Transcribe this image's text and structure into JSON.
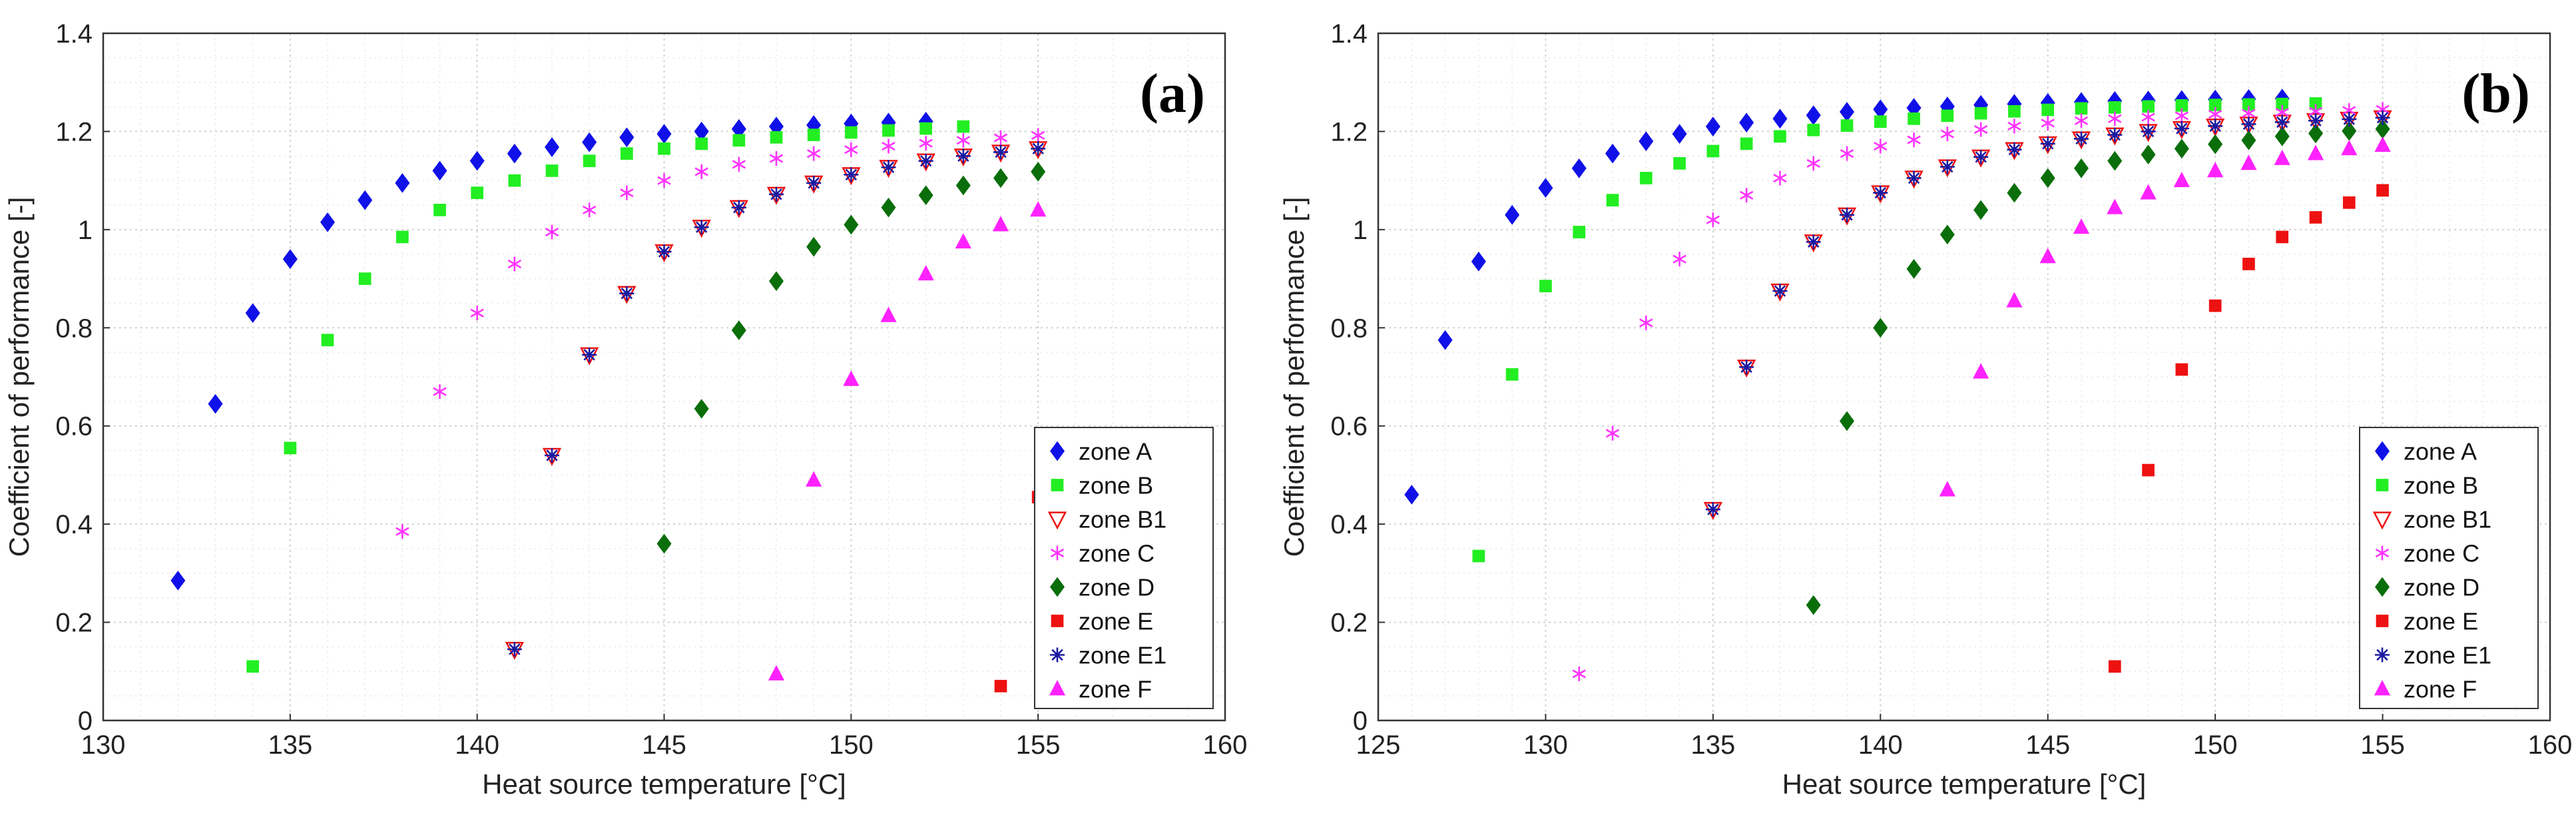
{
  "colors": {
    "zone_A": "#1010e8",
    "zone_B": "#22ee22",
    "zone_B1": "#ee1111",
    "zone_C": "#ff33ff",
    "zone_D": "#0a6e0a",
    "zone_E": "#ee1111",
    "zone_E1": "#1a1aa0",
    "zone_F": "#ff22ff",
    "grid": "#d2d2d2",
    "axis": "#333333"
  },
  "chart_data": [
    {
      "type": "scatter",
      "panel_label": "(a)",
      "xlabel": "Heat source temperature [°C]",
      "ylabel": "Coefficient of performance [-]",
      "xlim": [
        130,
        160
      ],
      "ylim": [
        0,
        1.4
      ],
      "xticks": [
        130,
        135,
        140,
        145,
        150,
        155,
        160
      ],
      "yticks": [
        0,
        0.2,
        0.4,
        0.6,
        0.8,
        1,
        1.2,
        1.4
      ],
      "xtick_labels": [
        "130",
        "135",
        "140",
        "145",
        "150",
        "155",
        "160"
      ],
      "ytick_labels": [
        "0",
        "0.2",
        "0.4",
        "0.6",
        "0.8",
        "1",
        "1.2",
        "1.4"
      ],
      "grid": true,
      "legend_position": "bottom-right",
      "series": [
        {
          "name": "zone A",
          "marker": "diamond",
          "color": "#1010e8",
          "x": [
            132,
            133,
            134,
            135,
            136,
            137,
            138,
            139,
            140,
            141,
            142,
            143,
            144,
            145,
            146,
            147,
            148,
            149,
            150,
            151,
            152
          ],
          "y": [
            0.285,
            0.645,
            0.83,
            0.94,
            1.015,
            1.06,
            1.095,
            1.12,
            1.14,
            1.155,
            1.168,
            1.178,
            1.188,
            1.195,
            1.2,
            1.205,
            1.21,
            1.213,
            1.216,
            1.218,
            1.22
          ]
        },
        {
          "name": "zone B",
          "marker": "square",
          "color": "#22ee22",
          "x": [
            134,
            135,
            136,
            137,
            138,
            139,
            140,
            141,
            142,
            143,
            144,
            145,
            146,
            147,
            148,
            149,
            150,
            151,
            152,
            153
          ],
          "y": [
            0.11,
            0.555,
            0.775,
            0.9,
            0.985,
            1.04,
            1.075,
            1.1,
            1.12,
            1.14,
            1.155,
            1.165,
            1.175,
            1.182,
            1.188,
            1.193,
            1.198,
            1.202,
            1.206,
            1.21
          ]
        },
        {
          "name": "zone B1",
          "marker": "triangle-down-open",
          "color": "#ee1111",
          "x": [
            141,
            142,
            143,
            144,
            145,
            146,
            147,
            148,
            149,
            150,
            151,
            152,
            153,
            154,
            155
          ],
          "y": [
            0.145,
            0.54,
            0.745,
            0.87,
            0.955,
            1.005,
            1.045,
            1.072,
            1.095,
            1.112,
            1.127,
            1.14,
            1.15,
            1.158,
            1.165
          ]
        },
        {
          "name": "zone C",
          "marker": "asterisk",
          "color": "#ff33ff",
          "x": [
            138,
            139,
            140,
            141,
            142,
            143,
            144,
            145,
            146,
            147,
            148,
            149,
            150,
            151,
            152,
            153,
            154,
            155
          ],
          "y": [
            0.385,
            0.67,
            0.83,
            0.93,
            0.995,
            1.04,
            1.075,
            1.1,
            1.118,
            1.133,
            1.145,
            1.155,
            1.163,
            1.17,
            1.176,
            1.182,
            1.187,
            1.192
          ]
        },
        {
          "name": "zone D",
          "marker": "diamond",
          "color": "#0a6e0a",
          "x": [
            145,
            146,
            147,
            148,
            149,
            150,
            151,
            152,
            153,
            154,
            155
          ],
          "y": [
            0.36,
            0.635,
            0.795,
            0.895,
            0.965,
            1.01,
            1.045,
            1.07,
            1.09,
            1.105,
            1.118
          ]
        },
        {
          "name": "zone E",
          "marker": "square",
          "color": "#ee1111",
          "x": [
            154,
            155
          ],
          "y": [
            0.07,
            0.455
          ]
        },
        {
          "name": "zone E1",
          "marker": "star",
          "color": "#1a1aa0",
          "x": [
            141,
            142,
            143,
            144,
            145,
            146,
            147,
            148,
            149,
            150,
            151,
            152,
            153,
            154,
            155
          ],
          "y": [
            0.145,
            0.54,
            0.745,
            0.87,
            0.955,
            1.005,
            1.045,
            1.072,
            1.095,
            1.112,
            1.127,
            1.14,
            1.15,
            1.158,
            1.165
          ]
        },
        {
          "name": "zone F",
          "marker": "triangle-up",
          "color": "#ff22ff",
          "x": [
            148,
            149,
            150,
            151,
            152,
            153,
            154,
            155
          ],
          "y": [
            0.095,
            0.49,
            0.695,
            0.825,
            0.91,
            0.975,
            1.01,
            1.04
          ]
        }
      ]
    },
    {
      "type": "scatter",
      "panel_label": "(b)",
      "xlabel": "Heat source temperature [°C]",
      "ylabel": "Coefficient of performance [-]",
      "xlim": [
        125,
        160
      ],
      "ylim": [
        0,
        1.4
      ],
      "xticks": [
        125,
        130,
        135,
        140,
        145,
        150,
        155,
        160
      ],
      "yticks": [
        0,
        0.2,
        0.4,
        0.6,
        0.8,
        1,
        1.2,
        1.4
      ],
      "xtick_labels": [
        "125",
        "130",
        "135",
        "140",
        "145",
        "150",
        "155",
        "160"
      ],
      "ytick_labels": [
        "0",
        "0.2",
        "0.4",
        "0.6",
        "0.8",
        "1",
        "1.2",
        "1.4"
      ],
      "grid": true,
      "legend_position": "bottom-right",
      "series": [
        {
          "name": "zone A",
          "marker": "diamond",
          "color": "#1010e8",
          "x": [
            126,
            127,
            128,
            129,
            130,
            131,
            132,
            133,
            134,
            135,
            136,
            137,
            138,
            139,
            140,
            141,
            142,
            143,
            144,
            145,
            146,
            147,
            148,
            149,
            150,
            151,
            152
          ],
          "y": [
            0.46,
            0.775,
            0.935,
            1.03,
            1.085,
            1.125,
            1.155,
            1.18,
            1.195,
            1.21,
            1.218,
            1.226,
            1.233,
            1.24,
            1.245,
            1.248,
            1.251,
            1.254,
            1.256,
            1.258,
            1.26,
            1.262,
            1.263,
            1.264,
            1.265,
            1.266,
            1.267
          ]
        },
        {
          "name": "zone B",
          "marker": "square",
          "color": "#22ee22",
          "x": [
            128,
            129,
            130,
            131,
            132,
            133,
            134,
            135,
            136,
            137,
            138,
            139,
            140,
            141,
            142,
            143,
            144,
            145,
            146,
            147,
            148,
            149,
            150,
            151,
            152,
            153
          ],
          "y": [
            0.335,
            0.705,
            0.885,
            0.995,
            1.06,
            1.105,
            1.135,
            1.16,
            1.175,
            1.19,
            1.203,
            1.212,
            1.22,
            1.226,
            1.232,
            1.237,
            1.241,
            1.244,
            1.247,
            1.249,
            1.251,
            1.253,
            1.254,
            1.255,
            1.256,
            1.257
          ]
        },
        {
          "name": "zone B1",
          "marker": "triangle-down-open",
          "color": "#ee1111",
          "x": [
            135,
            136,
            137,
            138,
            139,
            140,
            141,
            142,
            143,
            144,
            145,
            146,
            147,
            148,
            149,
            150,
            151,
            152,
            153,
            154,
            155
          ],
          "y": [
            0.43,
            0.72,
            0.875,
            0.975,
            1.03,
            1.075,
            1.105,
            1.128,
            1.148,
            1.163,
            1.175,
            1.185,
            1.193,
            1.2,
            1.206,
            1.211,
            1.215,
            1.219,
            1.222,
            1.225,
            1.228
          ]
        },
        {
          "name": "zone C",
          "marker": "asterisk",
          "color": "#ff33ff",
          "x": [
            131,
            132,
            133,
            134,
            135,
            136,
            137,
            138,
            139,
            140,
            141,
            142,
            143,
            144,
            145,
            146,
            147,
            148,
            149,
            150,
            151,
            152,
            153,
            154,
            155
          ],
          "y": [
            0.095,
            0.585,
            0.81,
            0.94,
            1.02,
            1.07,
            1.105,
            1.135,
            1.155,
            1.17,
            1.183,
            1.195,
            1.204,
            1.211,
            1.217,
            1.222,
            1.226,
            1.229,
            1.232,
            1.235,
            1.237,
            1.239,
            1.241,
            1.243,
            1.245
          ]
        },
        {
          "name": "zone D",
          "marker": "diamond",
          "color": "#0a6e0a",
          "x": [
            138,
            139,
            140,
            141,
            142,
            143,
            144,
            145,
            146,
            147,
            148,
            149,
            150,
            151,
            152,
            153,
            154,
            155
          ],
          "y": [
            0.235,
            0.61,
            0.8,
            0.92,
            0.99,
            1.04,
            1.075,
            1.105,
            1.125,
            1.14,
            1.153,
            1.165,
            1.174,
            1.182,
            1.19,
            1.196,
            1.201,
            1.205
          ]
        },
        {
          "name": "zone E",
          "marker": "square",
          "color": "#ee1111",
          "x": [
            147,
            148,
            149,
            150,
            151,
            152,
            153,
            154,
            155
          ],
          "y": [
            0.11,
            0.51,
            0.715,
            0.845,
            0.93,
            0.985,
            1.025,
            1.055,
            1.08
          ]
        },
        {
          "name": "zone E1",
          "marker": "star",
          "color": "#1a1aa0",
          "x": [
            135,
            136,
            137,
            138,
            139,
            140,
            141,
            142,
            143,
            144,
            145,
            146,
            147,
            148,
            149,
            150,
            151,
            152,
            153,
            154,
            155
          ],
          "y": [
            0.43,
            0.72,
            0.875,
            0.975,
            1.03,
            1.075,
            1.105,
            1.128,
            1.148,
            1.163,
            1.175,
            1.185,
            1.193,
            1.2,
            1.206,
            1.211,
            1.215,
            1.219,
            1.222,
            1.225,
            1.228
          ]
        },
        {
          "name": "zone F",
          "marker": "triangle-up",
          "color": "#ff22ff",
          "x": [
            142,
            143,
            144,
            145,
            146,
            147,
            148,
            149,
            150,
            151,
            152,
            153,
            154,
            155
          ],
          "y": [
            0.47,
            0.71,
            0.855,
            0.945,
            1.005,
            1.045,
            1.075,
            1.1,
            1.12,
            1.135,
            1.145,
            1.155,
            1.165,
            1.172
          ]
        }
      ]
    }
  ]
}
